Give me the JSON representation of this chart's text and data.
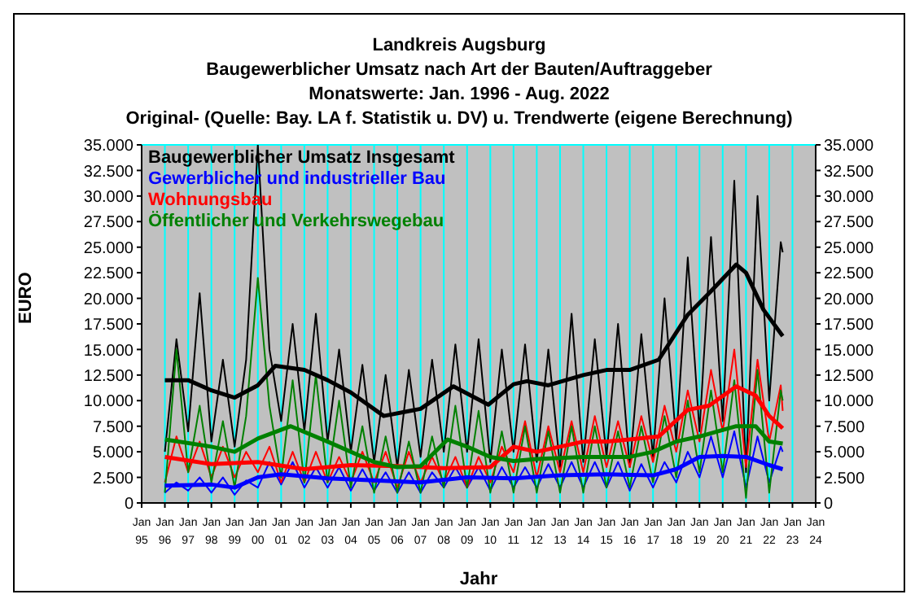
{
  "chart_data": {
    "type": "line",
    "title": "Landkreis Augsburg",
    "subtitle": "Baugewerblicher Umsatz nach Art der Bauten/Auftraggeber\nMonatswerte: Jan. 1996 - Aug. 2022\nOriginal- (Quelle: Bay. LA f. Statistik u. DV) u. Trendwerte (eigene Berechnung)",
    "xlabel": "Jahr",
    "ylabel": "EURO",
    "legend": "top left",
    "grid": true,
    "xlim": [
      "1995-01",
      "2024-01"
    ],
    "xticks": [
      {
        "value": "1995-01",
        "label": "Jan 95"
      },
      {
        "value": "1996-01",
        "label": "Jan 96"
      },
      {
        "value": "1997-01",
        "label": "Jan 97"
      },
      {
        "value": "1998-01",
        "label": "Jan 98"
      },
      {
        "value": "1999-01",
        "label": "Jan 99"
      },
      {
        "value": "2000-01",
        "label": "Jan 00"
      },
      {
        "value": "2001-01",
        "label": "Jan 01"
      },
      {
        "value": "2002-01",
        "label": "Jan 02"
      },
      {
        "value": "2003-01",
        "label": "Jan 03"
      },
      {
        "value": "2004-01",
        "label": "Jan 04"
      },
      {
        "value": "2005-01",
        "label": "Jan 05"
      },
      {
        "value": "2006-01",
        "label": "Jan 06"
      },
      {
        "value": "2007-01",
        "label": "Jan 07"
      },
      {
        "value": "2008-01",
        "label": "Jan 08"
      },
      {
        "value": "2009-01",
        "label": "Jan 09"
      },
      {
        "value": "2010-01",
        "label": "Jan 10"
      },
      {
        "value": "2011-01",
        "label": "Jan 11"
      },
      {
        "value": "2012-01",
        "label": "Jan 12"
      },
      {
        "value": "2013-01",
        "label": "Jan 13"
      },
      {
        "value": "2014-01",
        "label": "Jan 14"
      },
      {
        "value": "2015-01",
        "label": "Jan 15"
      },
      {
        "value": "2016-01",
        "label": "Jan 16"
      },
      {
        "value": "2017-01",
        "label": "Jan 17"
      },
      {
        "value": "2018-01",
        "label": "Jan 18"
      },
      {
        "value": "2019-01",
        "label": "Jan 19"
      },
      {
        "value": "2020-01",
        "label": "Jan 20"
      },
      {
        "value": "2021-01",
        "label": "Jan 21"
      },
      {
        "value": "2022-01",
        "label": "Jan 22"
      },
      {
        "value": "2023-01",
        "label": "Jan 23"
      },
      {
        "value": "2024-01",
        "label": "Jan 24"
      }
    ],
    "ylim": [
      0,
      35000
    ],
    "yticks": [
      {
        "value": 0,
        "label": "0"
      },
      {
        "value": 2500,
        "label": "2.500"
      },
      {
        "value": 5000,
        "label": "5.000"
      },
      {
        "value": 7500,
        "label": "7.500"
      },
      {
        "value": 10000,
        "label": "10.000"
      },
      {
        "value": 12500,
        "label": "12.500"
      },
      {
        "value": 15000,
        "label": "15.000"
      },
      {
        "value": 17500,
        "label": "17.500"
      },
      {
        "value": 20000,
        "label": "20.000"
      },
      {
        "value": 22500,
        "label": "22.500"
      },
      {
        "value": 25000,
        "label": "25.000"
      },
      {
        "value": 27500,
        "label": "27.500"
      },
      {
        "value": 30000,
        "label": "30.000"
      },
      {
        "value": 32500,
        "label": "32.500"
      },
      {
        "value": 35000,
        "label": "35.000"
      }
    ],
    "y2lim": [
      0,
      35000
    ],
    "y2ticks": [
      {
        "value": 0,
        "label": "0"
      },
      {
        "value": 2500,
        "label": "2.500"
      },
      {
        "value": 5000,
        "label": "5.000"
      },
      {
        "value": 7500,
        "label": "7.500"
      },
      {
        "value": 10000,
        "label": "10.000"
      },
      {
        "value": 12500,
        "label": "12.500"
      },
      {
        "value": 15000,
        "label": "15.000"
      },
      {
        "value": 17500,
        "label": "17.500"
      },
      {
        "value": 20000,
        "label": "20.000"
      },
      {
        "value": 22500,
        "label": "22.500"
      },
      {
        "value": 25000,
        "label": "25.000"
      },
      {
        "value": 27500,
        "label": "27.500"
      },
      {
        "value": 30000,
        "label": "30.000"
      },
      {
        "value": 32500,
        "label": "32.500"
      },
      {
        "value": 35000,
        "label": "35.000"
      }
    ],
    "series": [
      {
        "name": "Baugewerblicher Umsatz Insgesamt",
        "color": "#000000",
        "x": [
          "1996-01",
          "1996-07",
          "1997-01",
          "1997-07",
          "1998-01",
          "1998-07",
          "1999-01",
          "1999-07",
          "2000-01",
          "2000-07",
          "2001-01",
          "2001-07",
          "2002-01",
          "2002-07",
          "2003-01",
          "2003-07",
          "2004-01",
          "2004-07",
          "2005-01",
          "2005-07",
          "2006-01",
          "2006-07",
          "2007-01",
          "2007-07",
          "2008-01",
          "2008-07",
          "2009-01",
          "2009-07",
          "2010-01",
          "2010-07",
          "2011-01",
          "2011-07",
          "2012-01",
          "2012-07",
          "2013-01",
          "2013-07",
          "2014-01",
          "2014-07",
          "2015-01",
          "2015-07",
          "2016-01",
          "2016-07",
          "2017-01",
          "2017-07",
          "2018-01",
          "2018-07",
          "2019-01",
          "2019-07",
          "2020-01",
          "2020-07",
          "2021-01",
          "2021-07",
          "2022-01",
          "2022-07",
          "2022-08"
        ],
        "values": [
          5000,
          16000,
          7000,
          20500,
          6000,
          14000,
          5500,
          14000,
          35000,
          15000,
          8000,
          17500,
          7000,
          18500,
          6000,
          15000,
          5000,
          13500,
          4000,
          12500,
          3500,
          13000,
          4500,
          14000,
          5000,
          15500,
          5000,
          16000,
          4000,
          15000,
          5000,
          15500,
          4000,
          15000,
          3500,
          18500,
          4000,
          16000,
          4500,
          17500,
          3500,
          16500,
          4500,
          20000,
          6000,
          24000,
          7000,
          26000,
          8000,
          31500,
          3000,
          30000,
          10000,
          25500,
          24500
        ]
      },
      {
        "name": "Gewerblicher und industrieller Bau",
        "color": "#0000ff",
        "x": [
          "1996-01",
          "1996-07",
          "1997-01",
          "1997-07",
          "1998-01",
          "1998-07",
          "1999-01",
          "1999-07",
          "2000-01",
          "2000-07",
          "2001-01",
          "2001-07",
          "2002-01",
          "2002-07",
          "2003-01",
          "2003-07",
          "2004-01",
          "2004-07",
          "2005-01",
          "2005-07",
          "2006-01",
          "2006-07",
          "2007-01",
          "2007-07",
          "2008-01",
          "2008-07",
          "2009-01",
          "2009-07",
          "2010-01",
          "2010-07",
          "2011-01",
          "2011-07",
          "2012-01",
          "2012-07",
          "2013-01",
          "2013-07",
          "2014-01",
          "2014-07",
          "2015-01",
          "2015-07",
          "2016-01",
          "2016-07",
          "2017-01",
          "2017-07",
          "2018-01",
          "2018-07",
          "2019-01",
          "2019-07",
          "2020-01",
          "2020-07",
          "2021-01",
          "2021-07",
          "2022-01",
          "2022-07",
          "2022-08"
        ],
        "values": [
          1000,
          2000,
          1200,
          2500,
          1000,
          2500,
          800,
          2200,
          1500,
          4000,
          1800,
          4000,
          1500,
          3500,
          1500,
          3500,
          1200,
          3300,
          1200,
          3000,
          1000,
          3000,
          1000,
          3000,
          1500,
          3500,
          1500,
          3500,
          1200,
          3500,
          1500,
          3500,
          1500,
          3800,
          1500,
          4000,
          1500,
          4000,
          1500,
          4000,
          1200,
          3800,
          1500,
          4000,
          2000,
          5000,
          2500,
          6500,
          2500,
          7000,
          1500,
          6500,
          2000,
          5500,
          5000
        ]
      },
      {
        "name": "Wohnungsbau",
        "color": "#ff0000",
        "x": [
          "1996-01",
          "1996-07",
          "1997-01",
          "1997-07",
          "1998-01",
          "1998-07",
          "1999-01",
          "1999-07",
          "2000-01",
          "2000-07",
          "2001-01",
          "2001-07",
          "2002-01",
          "2002-07",
          "2003-01",
          "2003-07",
          "2004-01",
          "2004-07",
          "2005-01",
          "2005-07",
          "2006-01",
          "2006-07",
          "2007-01",
          "2007-07",
          "2008-01",
          "2008-07",
          "2009-01",
          "2009-07",
          "2010-01",
          "2010-07",
          "2011-01",
          "2011-07",
          "2012-01",
          "2012-07",
          "2013-01",
          "2013-07",
          "2014-01",
          "2014-07",
          "2015-01",
          "2015-07",
          "2016-01",
          "2016-07",
          "2017-01",
          "2017-07",
          "2018-01",
          "2018-07",
          "2019-01",
          "2019-07",
          "2020-01",
          "2020-07",
          "2021-01",
          "2021-07",
          "2022-01",
          "2022-07",
          "2022-08"
        ],
        "values": [
          2000,
          6500,
          3000,
          6000,
          2500,
          5500,
          2500,
          5000,
          3000,
          5500,
          2000,
          5000,
          2000,
          5000,
          2000,
          4500,
          2000,
          5000,
          2000,
          5000,
          1500,
          5000,
          2000,
          4500,
          2000,
          4500,
          1500,
          4500,
          2000,
          5500,
          3000,
          8000,
          2500,
          7500,
          3000,
          8000,
          3000,
          8500,
          3500,
          8000,
          3500,
          8500,
          4000,
          9500,
          5000,
          11000,
          6000,
          13000,
          7000,
          15000,
          3500,
          14000,
          6000,
          11500,
          9000
        ]
      },
      {
        "name": "Öffentlicher und Verkehrswegebau",
        "color": "#008000",
        "x": [
          "1996-01",
          "1996-07",
          "1997-01",
          "1997-07",
          "1998-01",
          "1998-07",
          "1999-01",
          "1999-07",
          "2000-01",
          "2000-07",
          "2001-01",
          "2001-07",
          "2002-01",
          "2002-07",
          "2003-01",
          "2003-07",
          "2004-01",
          "2004-07",
          "2005-01",
          "2005-07",
          "2006-01",
          "2006-07",
          "2007-01",
          "2007-07",
          "2008-01",
          "2008-07",
          "2009-01",
          "2009-07",
          "2010-01",
          "2010-07",
          "2011-01",
          "2011-07",
          "2012-01",
          "2012-07",
          "2013-01",
          "2013-07",
          "2014-01",
          "2014-07",
          "2015-01",
          "2015-07",
          "2016-01",
          "2016-07",
          "2017-01",
          "2017-07",
          "2018-01",
          "2018-07",
          "2019-01",
          "2019-07",
          "2020-01",
          "2020-07",
          "2021-01",
          "2021-07",
          "2022-01",
          "2022-07",
          "2022-08"
        ],
        "values": [
          1000,
          15000,
          3000,
          9500,
          2000,
          8000,
          1500,
          8500,
          22000,
          9500,
          2500,
          12000,
          2000,
          12500,
          2000,
          10000,
          1500,
          7500,
          1000,
          6500,
          1000,
          6000,
          1000,
          6500,
          1500,
          9500,
          1500,
          9000,
          1000,
          7000,
          1000,
          7500,
          1000,
          7000,
          1000,
          7500,
          1000,
          7500,
          1500,
          7000,
          1500,
          7500,
          2000,
          8500,
          2500,
          10000,
          3000,
          11000,
          3000,
          12000,
          500,
          13000,
          1000,
          11000,
          10000
        ]
      },
      {
        "color": "#000000",
        "x": [
          "1996-01",
          "1997-01",
          "1998-01",
          "1999-01",
          "2000-01",
          "2000-10",
          "2002-01",
          "2003-01",
          "2004-01",
          "2005-06",
          "2007-01",
          "2008-06",
          "2009-12",
          "2011-01",
          "2011-08",
          "2012-07",
          "2014-01",
          "2015-01",
          "2016-01",
          "2017-04",
          "2018-07",
          "2019-06",
          "2020-08",
          "2021-01",
          "2021-10",
          "2022-08"
        ],
        "values": [
          12000,
          12000,
          11000,
          10300,
          11500,
          13400,
          13000,
          12000,
          10800,
          8500,
          9200,
          11400,
          9600,
          11600,
          11900,
          11500,
          12500,
          13000,
          13000,
          14000,
          18400,
          20500,
          23300,
          22500,
          18900,
          16300
        ]
      },
      {
        "color": "#0000ff",
        "x": [
          "1996-01",
          "1998-01",
          "1999-01",
          "2000-01",
          "2001-01",
          "2003-01",
          "2005-01",
          "2007-01",
          "2009-01",
          "2011-01",
          "2013-01",
          "2015-01",
          "2017-01",
          "2018-01",
          "2019-01",
          "2020-01",
          "2021-01",
          "2022-01",
          "2022-08"
        ],
        "values": [
          1700,
          1800,
          1500,
          2500,
          2800,
          2400,
          2200,
          2000,
          2500,
          2400,
          2700,
          2800,
          2700,
          3300,
          4500,
          4600,
          4500,
          3700,
          3300
        ]
      },
      {
        "color": "#ff0000",
        "x": [
          "1996-01",
          "1998-01",
          "2000-01",
          "2002-01",
          "2004-01",
          "2006-01",
          "2008-01",
          "2010-01",
          "2011-01",
          "2012-01",
          "2013-01",
          "2014-01",
          "2015-01",
          "2016-01",
          "2017-04",
          "2018-07",
          "2019-06",
          "2020-08",
          "2021-06",
          "2022-01",
          "2022-08"
        ],
        "values": [
          4500,
          3800,
          4000,
          3300,
          3700,
          3600,
          3400,
          3500,
          5500,
          5000,
          5500,
          6000,
          6000,
          6200,
          6500,
          9100,
          9500,
          11400,
          10500,
          8500,
          7300
        ]
      },
      {
        "color": "#008000",
        "x": [
          "1996-01",
          "1998-01",
          "1999-01",
          "2000-01",
          "2001-06",
          "2003-01",
          "2005-01",
          "2006-01",
          "2007-01",
          "2008-03",
          "2009-01",
          "2010-01",
          "2011-01",
          "2012-01",
          "2014-01",
          "2016-01",
          "2017-01",
          "2018-01",
          "2019-01",
          "2020-08",
          "2021-06",
          "2022-01",
          "2022-08"
        ],
        "values": [
          6200,
          5500,
          5000,
          6300,
          7500,
          6000,
          4000,
          3500,
          3600,
          6200,
          5500,
          4500,
          4100,
          4300,
          4500,
          4500,
          5000,
          6000,
          6500,
          7500,
          7500,
          6000,
          5800
        ]
      }
    ]
  }
}
